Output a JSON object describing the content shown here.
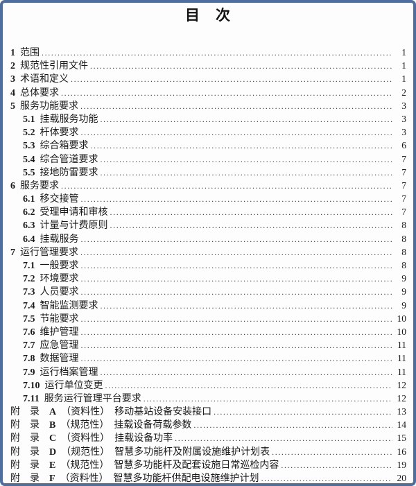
{
  "page": {
    "title": "目　次"
  },
  "colors": {
    "frame_border": "#4e6f9d",
    "text": "#1a1a1a"
  },
  "toc": {
    "entries": [
      {
        "pre": "",
        "num": "1",
        "label": "范围",
        "page": "1",
        "level": 1
      },
      {
        "pre": "",
        "num": "2",
        "label": "规范性引用文件",
        "page": "1",
        "level": 1
      },
      {
        "pre": "",
        "num": "3",
        "label": "术语和定义",
        "page": "1",
        "level": 1
      },
      {
        "pre": "",
        "num": "4",
        "label": "总体要求",
        "page": "2",
        "level": 1
      },
      {
        "pre": "",
        "num": "5",
        "label": "服务功能要求",
        "page": "3",
        "level": 1
      },
      {
        "pre": "",
        "num": "5.1",
        "label": "挂载服务功能",
        "page": "3",
        "level": 2
      },
      {
        "pre": "",
        "num": "5.2",
        "label": "杆体要求",
        "page": "3",
        "level": 2
      },
      {
        "pre": "",
        "num": "5.3",
        "label": "综合箱要求",
        "page": "6",
        "level": 2
      },
      {
        "pre": "",
        "num": "5.4",
        "label": "综合管道要求",
        "page": "7",
        "level": 2
      },
      {
        "pre": "",
        "num": "5.5",
        "label": "接地防雷要求",
        "page": "7",
        "level": 2
      },
      {
        "pre": "",
        "num": "6",
        "label": "服务要求",
        "page": "7",
        "level": 1
      },
      {
        "pre": "",
        "num": "6.1",
        "label": "移交接管",
        "page": "7",
        "level": 2
      },
      {
        "pre": "",
        "num": "6.2",
        "label": "受理申请和审核",
        "page": "7",
        "level": 2
      },
      {
        "pre": "",
        "num": "6.3",
        "label": "计量与计费原则",
        "page": "8",
        "level": 2
      },
      {
        "pre": "",
        "num": "6.4",
        "label": "挂载服务",
        "page": "8",
        "level": 2
      },
      {
        "pre": "",
        "num": "7",
        "label": "运行管理要求",
        "page": "8",
        "level": 1
      },
      {
        "pre": "",
        "num": "7.1",
        "label": "一般要求",
        "page": "8",
        "level": 2
      },
      {
        "pre": "",
        "num": "7.2",
        "label": "环境要求",
        "page": "9",
        "level": 2
      },
      {
        "pre": "",
        "num": "7.3",
        "label": "人员要求",
        "page": "9",
        "level": 2
      },
      {
        "pre": "",
        "num": "7.4",
        "label": "智能监测要求",
        "page": "9",
        "level": 2
      },
      {
        "pre": "",
        "num": "7.5",
        "label": "节能要求",
        "page": "10",
        "level": 2
      },
      {
        "pre": "",
        "num": "7.6",
        "label": "维护管理",
        "page": "10",
        "level": 2
      },
      {
        "pre": "",
        "num": "7.7",
        "label": "应急管理",
        "page": "11",
        "level": 2
      },
      {
        "pre": "",
        "num": "7.8",
        "label": "数据管理",
        "page": "11",
        "level": 2
      },
      {
        "pre": "",
        "num": "7.9",
        "label": "运行档案管理",
        "page": "11",
        "level": 2
      },
      {
        "pre": "",
        "num": "7.10",
        "label": "运行单位变更",
        "page": "12",
        "level": 2
      },
      {
        "pre": "",
        "num": "7.11",
        "label": "服务运行管理平台要求",
        "page": "12",
        "level": 2
      },
      {
        "pre": "附　录　",
        "num": "A",
        "label": "（资料性）　移动基站设备安装接口",
        "page": "13",
        "level": 1
      },
      {
        "pre": "附　录　",
        "num": "B",
        "label": "（规范性）　挂载设备荷载参数",
        "page": "14",
        "level": 1
      },
      {
        "pre": "附　录　",
        "num": "C",
        "label": "（资料性）　挂载设备功率",
        "page": "15",
        "level": 1
      },
      {
        "pre": "附　录　",
        "num": "D",
        "label": "（规范性）　智慧多功能杆及附属设施维护计划表",
        "page": "16",
        "level": 1
      },
      {
        "pre": "附　录　",
        "num": "E",
        "label": "（规范性）　智慧多功能杆及配套设施日常巡检内容",
        "page": "19",
        "level": 1
      },
      {
        "pre": "附　录　",
        "num": "F",
        "label": "（资料性）　智慧多功能杆供配电设施维护计划",
        "page": "20",
        "level": 1
      }
    ]
  }
}
